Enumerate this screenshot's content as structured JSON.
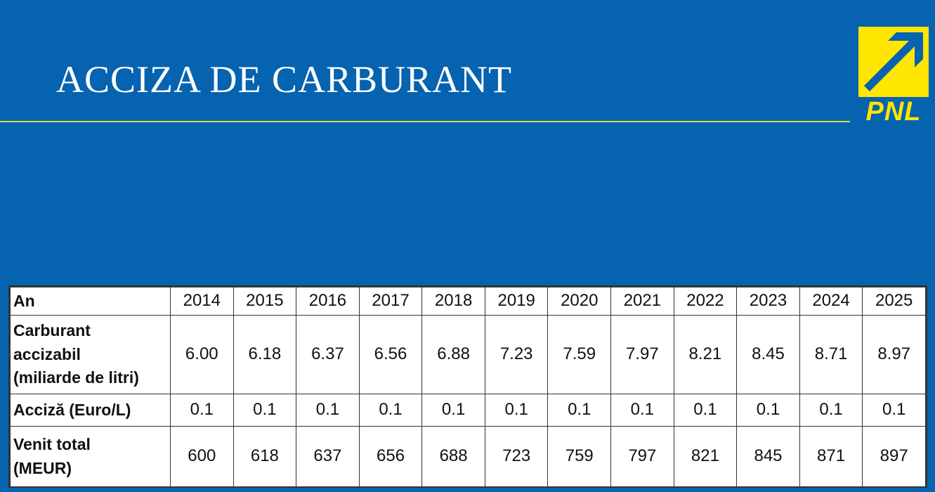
{
  "slide": {
    "title": "ACCIZA DE CARBURANT",
    "logo_text": "PNL"
  },
  "colors": {
    "background": "#0563b0",
    "rule": "#d5e04a",
    "logo_yellow": "#ffe600",
    "logo_blue": "#0563b0"
  },
  "table": {
    "rows": [
      {
        "label": "An",
        "cells": [
          "2014",
          "2015",
          "2016",
          "2017",
          "2018",
          "2019",
          "2020",
          "2021",
          "2022",
          "2023",
          "2024",
          "2025"
        ]
      },
      {
        "label": "Carburant\naccizabil\n(miliarde de litri)",
        "cells": [
          "6.00",
          "6.18",
          "6.37",
          "6.56",
          "6.88",
          "7.23",
          "7.59",
          "7.97",
          "8.21",
          "8.45",
          "8.71",
          "8.97"
        ]
      },
      {
        "label": "Acciză (Euro/L)",
        "cells": [
          "0.1",
          "0.1",
          "0.1",
          "0.1",
          "0.1",
          "0.1",
          "0.1",
          "0.1",
          "0.1",
          "0.1",
          "0.1",
          "0.1"
        ]
      },
      {
        "label": "Venit total\n(MEUR)",
        "cells": [
          "600",
          "618",
          "637",
          "656",
          "688",
          "723",
          "759",
          "797",
          "821",
          "845",
          "871",
          "897"
        ]
      }
    ]
  }
}
